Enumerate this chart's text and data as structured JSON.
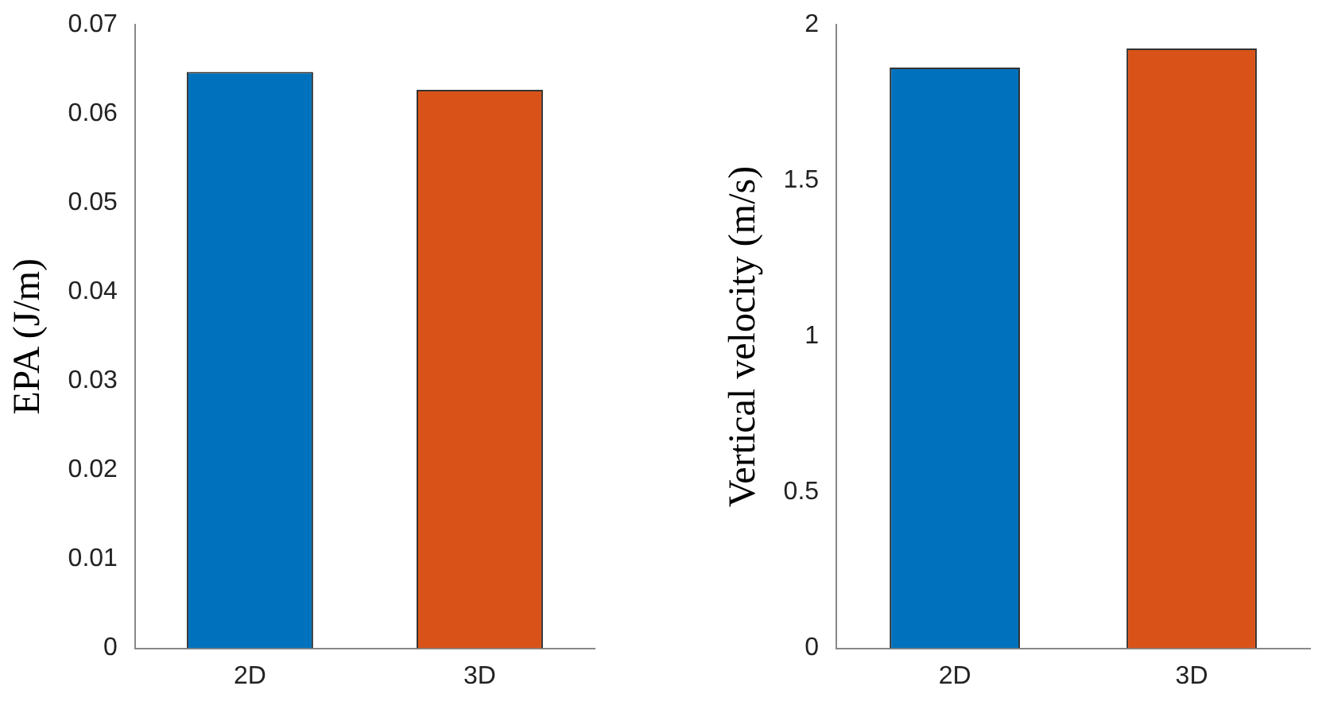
{
  "chart_data": [
    {
      "type": "bar",
      "ylabel": "EPA (J/m)",
      "categories": [
        "2D",
        "3D"
      ],
      "colors": [
        "#0072bd",
        "#d95319"
      ],
      "values": [
        0.0647,
        0.0627
      ],
      "ylim": [
        0,
        0.07
      ],
      "yticks": [
        0,
        0.01,
        0.02,
        0.03,
        0.04,
        0.05,
        0.06,
        0.07
      ],
      "grid": false,
      "legend": false
    },
    {
      "type": "bar",
      "ylabel": "Vertical velocity (m/s)",
      "categories": [
        "2D",
        "3D"
      ],
      "colors": [
        "#0072bd",
        "#d95319"
      ],
      "values": [
        1.863,
        1.924
      ],
      "ylim": [
        0,
        2
      ],
      "yticks": [
        0,
        0.5,
        1,
        1.5,
        2
      ],
      "grid": false,
      "legend": false
    }
  ]
}
